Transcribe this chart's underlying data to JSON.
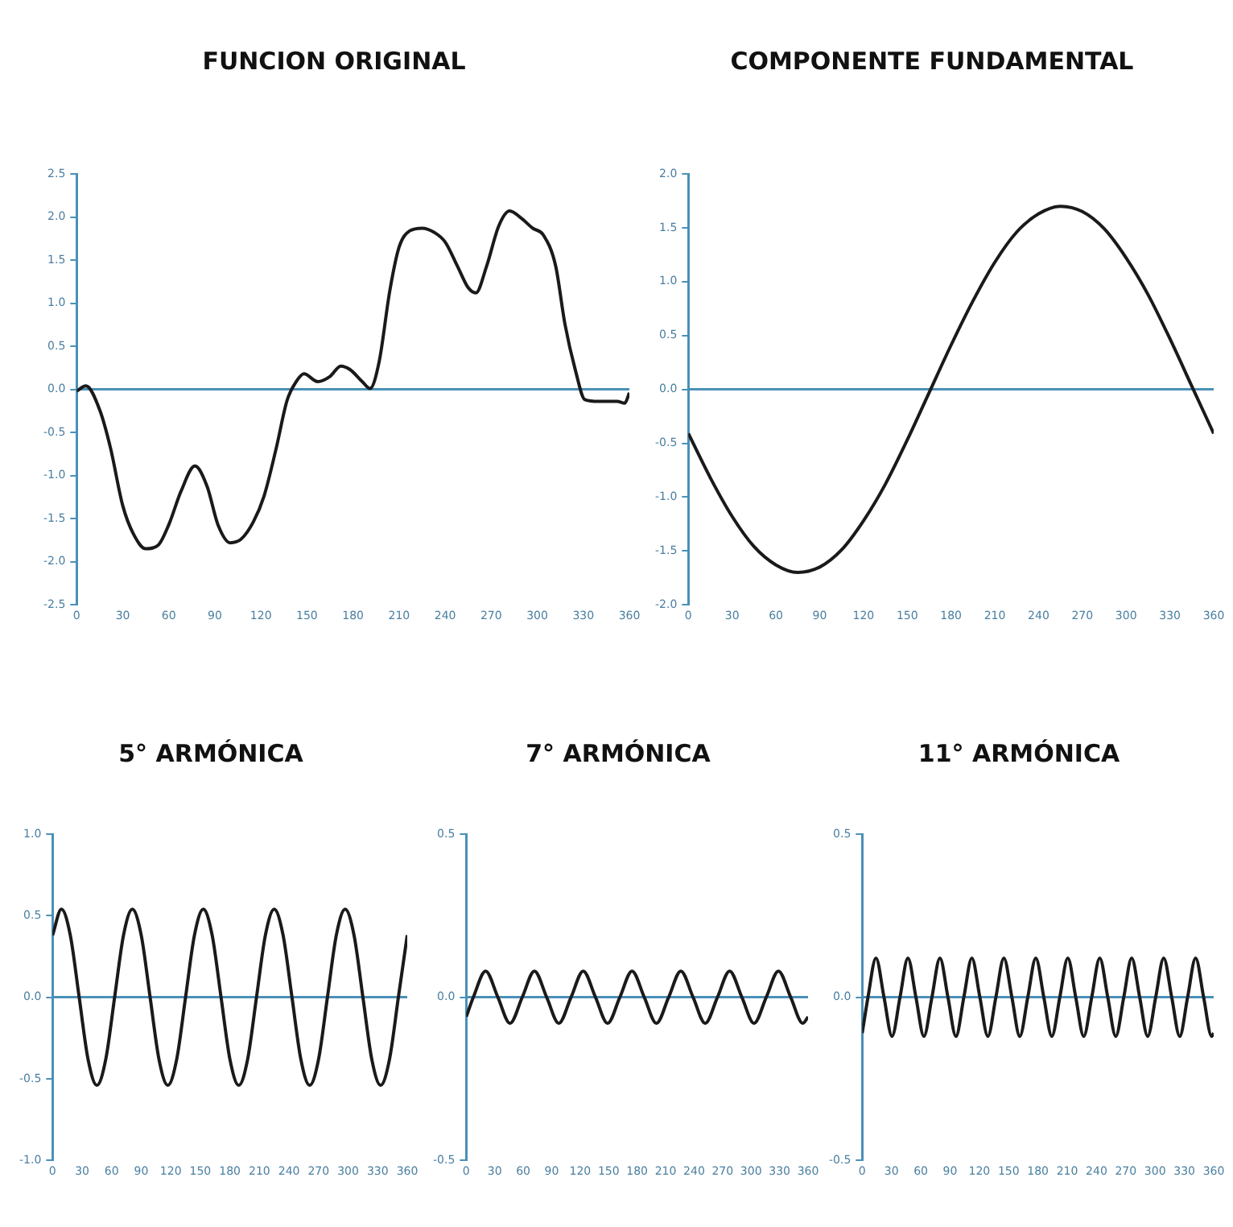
{
  "chart_data": [
    {
      "type": "line",
      "title": "FUNCION ORIGINAL",
      "x": [
        0,
        6,
        15,
        22,
        30,
        37,
        45,
        53,
        60,
        68,
        77,
        85,
        92,
        100,
        107,
        115,
        122,
        130,
        137,
        143,
        148,
        157,
        165,
        172,
        178,
        186,
        191,
        197,
        204,
        210,
        217,
        225,
        233,
        240,
        248,
        255,
        260,
        267,
        275,
        282,
        290,
        297,
        304,
        312,
        318,
        325,
        331,
        340,
        352,
        357,
        360
      ],
      "series": [
        {
          "color": "#1a1a1a",
          "values": [
            -0.02,
            0.04,
            -0.24,
            -0.68,
            -1.35,
            -1.68,
            -1.85,
            -1.81,
            -1.57,
            -1.18,
            -0.89,
            -1.13,
            -1.57,
            -1.78,
            -1.74,
            -1.54,
            -1.24,
            -0.68,
            -0.13,
            0.09,
            0.18,
            0.09,
            0.15,
            0.27,
            0.23,
            0.09,
            0.01,
            0.32,
            1.15,
            1.65,
            1.84,
            1.87,
            1.82,
            1.71,
            1.43,
            1.18,
            1.12,
            1.43,
            1.9,
            2.07,
            1.98,
            1.87,
            1.79,
            1.43,
            0.76,
            0.21,
            -0.12,
            -0.14,
            -0.14,
            -0.16,
            -0.04
          ]
        }
      ],
      "xlim": [
        0,
        360
      ],
      "xticks": [
        0,
        30,
        60,
        90,
        120,
        150,
        180,
        210,
        240,
        270,
        300,
        330,
        360
      ],
      "ref_lines": [
        {
          "axis": "y",
          "value": 0,
          "color": "#4a90b8"
        }
      ],
      "ylim": [
        -2.5,
        2.5
      ],
      "yticks": [
        {
          "value": -2.5,
          "label": "-2.5"
        },
        {
          "value": -2,
          "label": "-2.0"
        },
        {
          "value": -1.5,
          "label": "-1.5"
        },
        {
          "value": -1,
          "label": "-1.0"
        },
        {
          "value": -0.5,
          "label": "-0.5"
        },
        {
          "value": 0,
          "label": "0.0"
        },
        {
          "value": 0.5,
          "label": "0.5"
        },
        {
          "value": 1,
          "label": "1.0"
        },
        {
          "value": 1.5,
          "label": "1.5"
        },
        {
          "value": 2,
          "label": "2.0"
        },
        {
          "value": 2.5,
          "label": "2.5"
        }
      ],
      "marker": "none"
    },
    {
      "type": "line",
      "title": "COMPONENTE FUNDAMENTAL",
      "x": [
        0,
        15,
        30,
        45,
        60,
        75,
        90,
        105,
        120,
        135,
        150,
        165,
        180,
        195,
        210,
        225,
        240,
        255,
        270,
        285,
        300,
        315,
        330,
        345,
        360
      ],
      "series": [
        {
          "color": "#1a1a1a",
          "values": [
            -0.41,
            -0.82,
            -1.18,
            -1.46,
            -1.63,
            -1.7,
            -1.65,
            -1.49,
            -1.22,
            -0.88,
            -0.47,
            -0.03,
            0.41,
            0.82,
            1.18,
            1.46,
            1.63,
            1.7,
            1.65,
            1.49,
            1.22,
            0.88,
            0.47,
            0.03,
            -0.41
          ]
        }
      ],
      "xlim": [
        0,
        360
      ],
      "xticks": [
        0,
        30,
        60,
        90,
        120,
        150,
        180,
        210,
        240,
        270,
        300,
        330,
        360
      ],
      "ref_lines": [
        {
          "axis": "y",
          "value": 0,
          "color": "#4a90b8"
        }
      ],
      "ylim": [
        -2,
        2
      ],
      "yticks": [
        {
          "value": -2,
          "label": "-2.0"
        },
        {
          "value": -1.5,
          "label": "-1.5"
        },
        {
          "value": -1,
          "label": "-1.0"
        },
        {
          "value": -0.5,
          "label": "-0.5"
        },
        {
          "value": 0,
          "label": "0.0"
        },
        {
          "value": 0.5,
          "label": "0.5"
        },
        {
          "value": 1,
          "label": "1.0"
        },
        {
          "value": 1.5,
          "label": "1.5"
        },
        {
          "value": 2,
          "label": "2.0"
        }
      ],
      "marker": "none"
    },
    {
      "type": "line",
      "title": "5° ARMÓNICA",
      "x": [
        0,
        9,
        18,
        27,
        36,
        45,
        54,
        63,
        72,
        81,
        90,
        99,
        108,
        117,
        126,
        135,
        144,
        153,
        162,
        171,
        180,
        189,
        198,
        207,
        216,
        225,
        234,
        243,
        252,
        261,
        270,
        279,
        288,
        297,
        306,
        315,
        324,
        333,
        342,
        351,
        360
      ],
      "series": [
        {
          "color": "#1a1a1a",
          "values": [
            0.38,
            0.54,
            0.38,
            0,
            -0.38,
            -0.54,
            -0.38,
            0,
            0.38,
            0.54,
            0.38,
            0,
            -0.38,
            -0.54,
            -0.38,
            0,
            0.38,
            0.54,
            0.38,
            0,
            -0.38,
            -0.54,
            -0.38,
            0,
            0.38,
            0.54,
            0.38,
            0,
            -0.38,
            -0.54,
            -0.38,
            0,
            0.38,
            0.54,
            0.38,
            0,
            -0.38,
            -0.54,
            -0.38,
            0,
            0.38
          ]
        }
      ],
      "xlim": [
        0,
        360
      ],
      "xticks": [
        0,
        30,
        60,
        90,
        120,
        150,
        180,
        210,
        240,
        270,
        300,
        330,
        360
      ],
      "ref_lines": [
        {
          "axis": "y",
          "value": 0,
          "color": "#4a90b8"
        }
      ],
      "ylim": [
        -1,
        1
      ],
      "yticks": [
        {
          "value": -1,
          "label": "-1.0"
        },
        {
          "value": -0.5,
          "label": "-0.5"
        },
        {
          "value": 0,
          "label": "0.0"
        },
        {
          "value": 0.5,
          "label": "0.5"
        },
        {
          "value": 1,
          "label": "1.0"
        }
      ],
      "marker": "none"
    },
    {
      "type": "line",
      "title": "7° ARMÓNICA",
      "x": [
        0,
        7.5,
        20.4,
        33.3,
        46.1,
        59,
        71.8,
        84.7,
        97.5,
        110.4,
        123.2,
        136.1,
        148.9,
        161.8,
        174.6,
        187.5,
        200.3,
        213.2,
        226,
        238.9,
        251.7,
        264.6,
        277.4,
        290.3,
        303.1,
        316,
        328.8,
        341.7,
        354.5,
        360
      ],
      "series": [
        {
          "color": "#1a1a1a",
          "values": [
            -0.06,
            0,
            0.08,
            0,
            -0.08,
            0,
            0.08,
            0,
            -0.08,
            0,
            0.08,
            0,
            -0.08,
            0,
            0.08,
            0,
            -0.08,
            0,
            0.08,
            0,
            -0.08,
            0,
            0.08,
            0,
            -0.08,
            0,
            0.08,
            0,
            -0.08,
            -0.06
          ]
        }
      ],
      "xlim": [
        0,
        360
      ],
      "xticks": [
        0,
        30,
        60,
        90,
        120,
        150,
        180,
        210,
        240,
        270,
        300,
        330,
        360
      ],
      "ref_lines": [
        {
          "axis": "y",
          "value": 0,
          "color": "#4a90b8"
        }
      ],
      "ylim": [
        -0.5,
        0.5
      ],
      "yticks": [
        {
          "value": -0.5,
          "label": "-0.5"
        },
        {
          "value": 0,
          "label": "0.0"
        },
        {
          "value": 0.5,
          "label": "0.5"
        }
      ],
      "marker": "none"
    },
    {
      "type": "line",
      "title": "11° ARMÓNICA",
      "x": [
        0,
        5.9,
        14.1,
        22.3,
        30.5,
        38.7,
        46.8,
        55,
        63.2,
        71.4,
        79.6,
        87.8,
        96,
        104.1,
        112.3,
        120.5,
        128.7,
        136.9,
        145.1,
        153.3,
        161.4,
        169.6,
        177.8,
        186,
        194.2,
        202.4,
        210.6,
        218.7,
        226.9,
        235.1,
        243.3,
        251.5,
        259.7,
        267.9,
        276,
        284.2,
        292.4,
        300.6,
        308.8,
        317,
        325.2,
        333.3,
        341.5,
        349.7,
        357.9,
        360
      ],
      "series": [
        {
          "color": "#1a1a1a",
          "values": [
            -0.11,
            0,
            0.12,
            0,
            -0.12,
            0,
            0.12,
            0,
            -0.12,
            0,
            0.12,
            0,
            -0.12,
            0,
            0.12,
            0,
            -0.12,
            0,
            0.12,
            0,
            -0.12,
            0,
            0.12,
            0,
            -0.12,
            0,
            0.12,
            0,
            -0.12,
            0,
            0.12,
            0,
            -0.12,
            0,
            0.12,
            0,
            -0.12,
            0,
            0.12,
            0,
            -0.12,
            0,
            0.12,
            0,
            -0.12,
            -0.11
          ]
        }
      ],
      "xlim": [
        0,
        360
      ],
      "xticks": [
        0,
        30,
        60,
        90,
        120,
        150,
        180,
        210,
        240,
        270,
        300,
        330,
        360
      ],
      "ref_lines": [
        {
          "axis": "y",
          "value": 0,
          "color": "#4a90b8"
        }
      ],
      "ylim": [
        -0.5,
        0.5
      ],
      "yticks": [
        {
          "value": -0.5,
          "label": "-0.5"
        },
        {
          "value": 0,
          "label": "0.0"
        },
        {
          "value": 0.5,
          "label": "0.5"
        }
      ],
      "marker": "none"
    }
  ]
}
